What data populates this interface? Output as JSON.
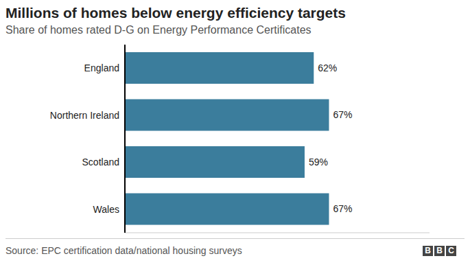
{
  "chart_data": {
    "type": "bar",
    "title": "Millions of homes below energy efficiency targets",
    "subtitle": "Share of homes rated D-G on Energy Performance Certificates",
    "source": "Source: EPC certification data/national housing surveys",
    "branding": "BBC",
    "orientation": "horizontal",
    "categories": [
      "England",
      "Northern Ireland",
      "Scotland",
      "Wales"
    ],
    "values": [
      62,
      67,
      59,
      67
    ],
    "value_labels": [
      "62%",
      "67%",
      "59%",
      "67%"
    ],
    "color": "#3b7d9c",
    "xlim": [
      0,
      100
    ],
    "data_labels": true,
    "tick_labels": "y",
    "grid": false
  }
}
